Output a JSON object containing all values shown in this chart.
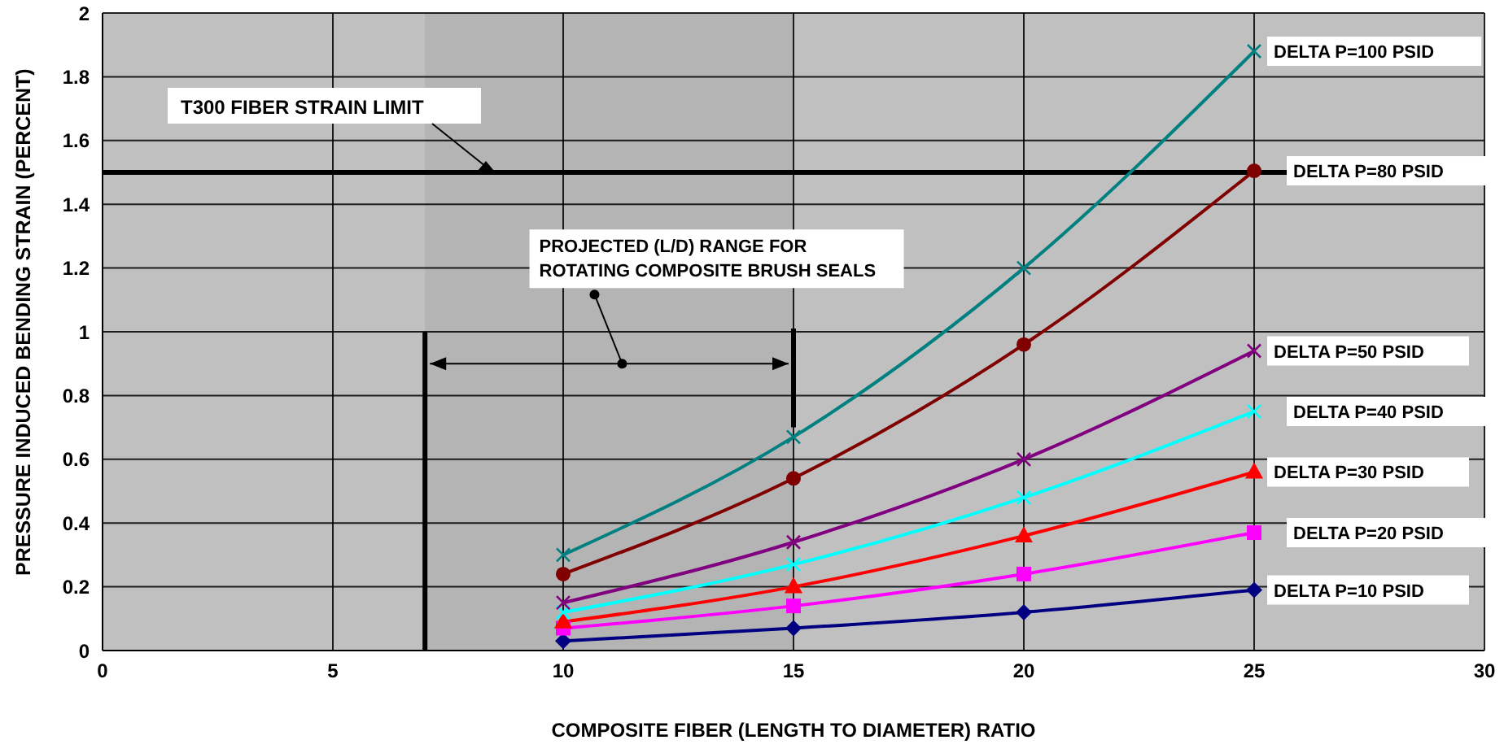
{
  "chart_data": {
    "type": "line",
    "xlabel": "COMPOSITE FIBER (LENGTH TO DIAMETER)  RATIO",
    "ylabel": "PRESSURE INDUCED BENDING STRAIN (PERCENT)",
    "x": [
      10,
      15,
      20,
      25
    ],
    "series": [
      {
        "name": "DELTA P=100 PSID",
        "color": "#008080",
        "marker": "cross",
        "values": [
          0.3,
          0.67,
          1.2,
          1.88
        ]
      },
      {
        "name": "DELTA P=80 PSID",
        "color": "#800000",
        "marker": "circle",
        "values": [
          0.24,
          0.54,
          0.96,
          1.505
        ]
      },
      {
        "name": "DELTA P=50 PSID",
        "color": "#800080",
        "marker": "cross",
        "values": [
          0.15,
          0.34,
          0.6,
          0.94
        ]
      },
      {
        "name": "DELTA P=40 PSID",
        "color": "#00ffff",
        "marker": "cross",
        "values": [
          0.12,
          0.27,
          0.48,
          0.75
        ]
      },
      {
        "name": "DELTA P=30 PSID",
        "color": "#ff0000",
        "marker": "triangle",
        "values": [
          0.09,
          0.2,
          0.36,
          0.56
        ]
      },
      {
        "name": "DELTA P=20 PSID",
        "color": "#ff00ff",
        "marker": "square",
        "values": [
          0.07,
          0.14,
          0.24,
          0.37
        ]
      },
      {
        "name": "DELTA P=10 PSID",
        "color": "#000080",
        "marker": "diamond",
        "values": [
          0.03,
          0.07,
          0.12,
          0.19
        ]
      }
    ],
    "xlim": [
      0,
      30
    ],
    "xticks": [
      0,
      5,
      10,
      15,
      20,
      25,
      30
    ],
    "ylim": [
      0,
      2
    ],
    "yticks": [
      0,
      0.2,
      0.4,
      0.6,
      0.8,
      1,
      1.2,
      1.4,
      1.6,
      1.8,
      2
    ],
    "grid": true,
    "legend": false,
    "line_style": "solid",
    "ref_lines": [
      {
        "axis": "y",
        "value": 1.5,
        "label": "T300 FIBER STRAIN LIMIT",
        "color": "#000000"
      }
    ],
    "bands": [
      {
        "axis": "x",
        "from": 7,
        "to": 15,
        "label": "PROJECTED (L/D) RANGE FOR\nROTATING COMPOSITE BRUSH SEALS",
        "color": "#000000"
      }
    ]
  }
}
